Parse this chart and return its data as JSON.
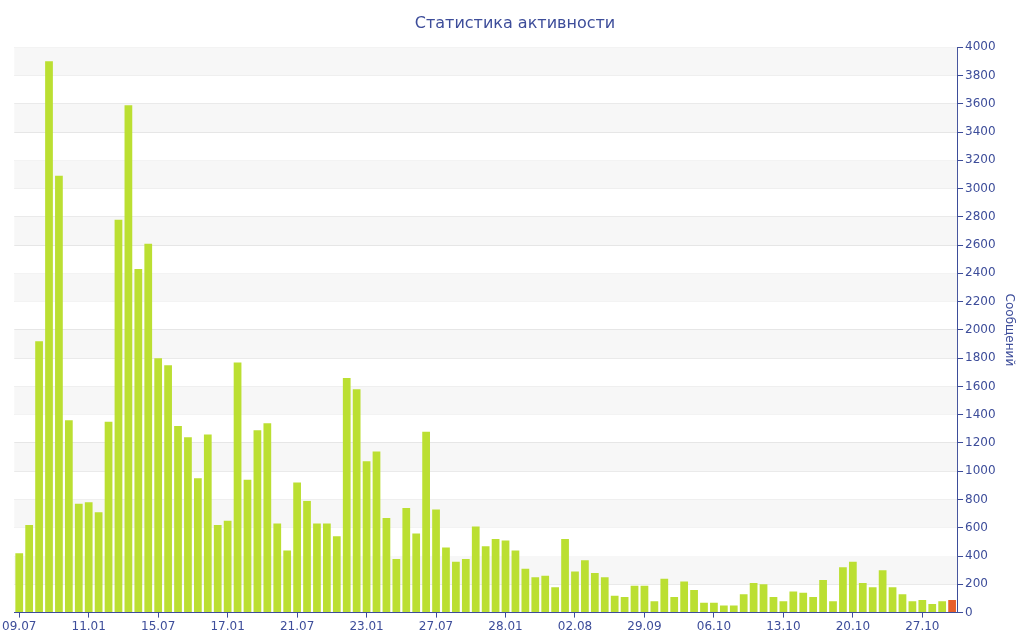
{
  "chart_data": {
    "type": "bar",
    "title": "Статистика активности",
    "ylabel": "Сообщений",
    "categories": [
      "09.07",
      null,
      null,
      null,
      null,
      null,
      null,
      "11.01",
      null,
      null,
      null,
      null,
      null,
      null,
      "15.07",
      null,
      null,
      null,
      null,
      null,
      null,
      "17.01",
      null,
      null,
      null,
      null,
      null,
      null,
      "21.07",
      null,
      null,
      null,
      null,
      null,
      null,
      "23.01",
      null,
      null,
      null,
      null,
      null,
      null,
      "27.07",
      null,
      null,
      null,
      null,
      null,
      null,
      "28.01",
      null,
      null,
      null,
      null,
      null,
      null,
      "02.08",
      null,
      null,
      null,
      null,
      null,
      null,
      "29.09",
      null,
      null,
      null,
      null,
      null,
      null,
      "06.10",
      null,
      null,
      null,
      null,
      null,
      null,
      "13.10",
      null,
      null,
      null,
      null,
      null,
      null,
      "20.10",
      null,
      null,
      null,
      null,
      null,
      null,
      "27.10",
      null,
      null,
      null
    ],
    "values": [
      420,
      620,
      1920,
      3900,
      3090,
      1360,
      770,
      780,
      710,
      1350,
      2780,
      3590,
      2430,
      2610,
      1800,
      1750,
      1320,
      1240,
      950,
      1260,
      620,
      650,
      1770,
      940,
      1290,
      1340,
      630,
      440,
      920,
      790,
      630,
      630,
      540,
      1660,
      1580,
      1070,
      1140,
      670,
      380,
      740,
      560,
      1280,
      730,
      460,
      360,
      380,
      610,
      470,
      520,
      510,
      440,
      310,
      250,
      260,
      180,
      520,
      290,
      370,
      280,
      250,
      120,
      110,
      190,
      190,
      80,
      240,
      110,
      220,
      160,
      70,
      70,
      50,
      50,
      130,
      210,
      200,
      110,
      80,
      150,
      140,
      110,
      230,
      80,
      320,
      360,
      210,
      180,
      300,
      180,
      130,
      80,
      90,
      60,
      80,
      90
    ],
    "colors": [
      "#bbdf32",
      "#bbdf32",
      "#bbdf32",
      "#bbdf32",
      "#bbdf32",
      "#bbdf32",
      "#bbdf32",
      "#bbdf32",
      "#bbdf32",
      "#bbdf32",
      "#bbdf32",
      "#bbdf32",
      "#bbdf32",
      "#bbdf32",
      "#bbdf32",
      "#bbdf32",
      "#bbdf32",
      "#bbdf32",
      "#bbdf32",
      "#bbdf32",
      "#bbdf32",
      "#bbdf32",
      "#bbdf32",
      "#bbdf32",
      "#bbdf32",
      "#bbdf32",
      "#bbdf32",
      "#bbdf32",
      "#bbdf32",
      "#bbdf32",
      "#bbdf32",
      "#bbdf32",
      "#bbdf32",
      "#bbdf32",
      "#bbdf32",
      "#bbdf32",
      "#bbdf32",
      "#bbdf32",
      "#bbdf32",
      "#bbdf32",
      "#bbdf32",
      "#bbdf32",
      "#bbdf32",
      "#bbdf32",
      "#bbdf32",
      "#bbdf32",
      "#bbdf32",
      "#bbdf32",
      "#bbdf32",
      "#bbdf32",
      "#bbdf32",
      "#bbdf32",
      "#bbdf32",
      "#bbdf32",
      "#bbdf32",
      "#bbdf32",
      "#bbdf32",
      "#bbdf32",
      "#bbdf32",
      "#bbdf32",
      "#bbdf32",
      "#bbdf32",
      "#bbdf32",
      "#bbdf32",
      "#bbdf32",
      "#bbdf32",
      "#bbdf32",
      "#bbdf32",
      "#bbdf32",
      "#bbdf32",
      "#bbdf32",
      "#bbdf32",
      "#bbdf32",
      "#bbdf32",
      "#bbdf32",
      "#bbdf32",
      "#bbdf32",
      "#bbdf32",
      "#bbdf32",
      "#bbdf32",
      "#bbdf32",
      "#bbdf32",
      "#bbdf32",
      "#bbdf32",
      "#bbdf32",
      "#bbdf32",
      "#bbdf32",
      "#bbdf32",
      "#bbdf32",
      "#bbdf32",
      "#bbdf32",
      "#bbdf32",
      "#bbdf32",
      "#bbdf32",
      "#e8602c"
    ],
    "ylim": [
      0,
      4000
    ],
    "yticks": [
      0,
      200,
      400,
      600,
      800,
      1000,
      1200,
      1400,
      1600,
      1800,
      2000,
      2200,
      2400,
      2600,
      2800,
      3000,
      3200,
      3400,
      3600,
      3800,
      4000
    ],
    "grid": "y",
    "legend": false
  }
}
